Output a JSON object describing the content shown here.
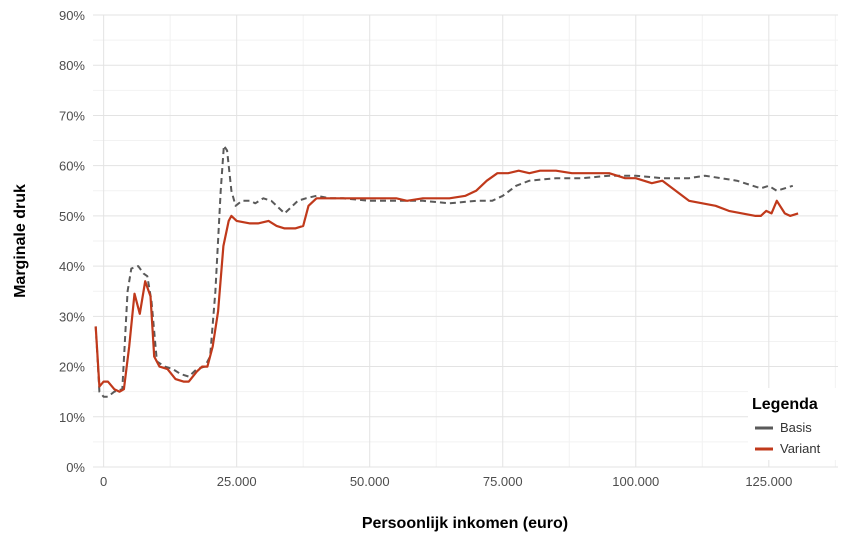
{
  "chart_data": {
    "type": "line",
    "xlabel": "Persoonlijk inkomen (euro)",
    "ylabel": "Marginale druk",
    "xlim": [
      -2000,
      138000
    ],
    "ylim": [
      0,
      90
    ],
    "x_ticks": [
      {
        "value": 0,
        "label": "0"
      },
      {
        "value": 25000,
        "label": "25.000"
      },
      {
        "value": 50000,
        "label": "50.000"
      },
      {
        "value": 75000,
        "label": "75.000"
      },
      {
        "value": 100000,
        "label": "100.000"
      },
      {
        "value": 125000,
        "label": "125.000"
      }
    ],
    "y_ticks": [
      {
        "value": 0,
        "label": "0%"
      },
      {
        "value": 10,
        "label": "10%"
      },
      {
        "value": 20,
        "label": "20%"
      },
      {
        "value": 30,
        "label": "30%"
      },
      {
        "value": 40,
        "label": "40%"
      },
      {
        "value": 50,
        "label": "50%"
      },
      {
        "value": 60,
        "label": "60%"
      },
      {
        "value": 70,
        "label": "70%"
      },
      {
        "value": 80,
        "label": "80%"
      },
      {
        "value": 90,
        "label": "90%"
      }
    ],
    "grid": true,
    "legend": {
      "title": "Legenda",
      "position": "bottom-right"
    },
    "series": [
      {
        "name": "Basis",
        "color": "#5a5a5a",
        "dash": "dashed",
        "points": [
          [
            -1500,
            28
          ],
          [
            -800,
            15
          ],
          [
            0,
            14
          ],
          [
            800,
            14
          ],
          [
            2000,
            15
          ],
          [
            3500,
            15.5
          ],
          [
            4500,
            35
          ],
          [
            5200,
            39.5
          ],
          [
            6500,
            40
          ],
          [
            7500,
            38.5
          ],
          [
            8200,
            38
          ],
          [
            9000,
            33
          ],
          [
            10000,
            21
          ],
          [
            11500,
            20
          ],
          [
            13000,
            19.5
          ],
          [
            14500,
            18.5
          ],
          [
            16000,
            18
          ],
          [
            17500,
            19.5
          ],
          [
            19000,
            20
          ],
          [
            20000,
            22
          ],
          [
            21000,
            35
          ],
          [
            22000,
            55
          ],
          [
            22600,
            64
          ],
          [
            23200,
            63
          ],
          [
            24000,
            55
          ],
          [
            24800,
            52
          ],
          [
            26000,
            53
          ],
          [
            27500,
            53
          ],
          [
            28500,
            52.5
          ],
          [
            30000,
            53.5
          ],
          [
            31500,
            53
          ],
          [
            33000,
            51.5
          ],
          [
            34000,
            50.5
          ],
          [
            35000,
            51.5
          ],
          [
            36500,
            53
          ],
          [
            38000,
            53.5
          ],
          [
            40000,
            54
          ],
          [
            42500,
            53.5
          ],
          [
            45000,
            53.5
          ],
          [
            50000,
            53
          ],
          [
            55000,
            53
          ],
          [
            60000,
            53
          ],
          [
            65000,
            52.5
          ],
          [
            70000,
            53
          ],
          [
            73000,
            53
          ],
          [
            75000,
            54
          ],
          [
            77500,
            56
          ],
          [
            80000,
            57
          ],
          [
            85000,
            57.5
          ],
          [
            90000,
            57.5
          ],
          [
            95000,
            58
          ],
          [
            100000,
            58
          ],
          [
            105000,
            57.5
          ],
          [
            110000,
            57.5
          ],
          [
            113000,
            58
          ],
          [
            116000,
            57.5
          ],
          [
            119000,
            57
          ],
          [
            122000,
            56
          ],
          [
            123500,
            55.5
          ],
          [
            125000,
            56
          ],
          [
            126500,
            55
          ],
          [
            128000,
            55.5
          ],
          [
            129500,
            56
          ]
        ]
      },
      {
        "name": "Variant",
        "color": "#c0391b",
        "dash": "solid",
        "points": [
          [
            -1500,
            28
          ],
          [
            -800,
            16
          ],
          [
            0,
            17
          ],
          [
            800,
            17
          ],
          [
            2000,
            15.5
          ],
          [
            3000,
            15
          ],
          [
            3800,
            15.5
          ],
          [
            4800,
            24
          ],
          [
            5800,
            34.5
          ],
          [
            6800,
            30.5
          ],
          [
            7800,
            37
          ],
          [
            8800,
            34
          ],
          [
            9500,
            22
          ],
          [
            10500,
            20
          ],
          [
            12000,
            19.5
          ],
          [
            13500,
            17.5
          ],
          [
            15000,
            17
          ],
          [
            16000,
            17
          ],
          [
            17500,
            19
          ],
          [
            18500,
            20
          ],
          [
            19500,
            20
          ],
          [
            20500,
            24
          ],
          [
            21500,
            31
          ],
          [
            22500,
            44
          ],
          [
            23500,
            49
          ],
          [
            24000,
            50
          ],
          [
            25000,
            49
          ],
          [
            27500,
            48.5
          ],
          [
            29000,
            48.5
          ],
          [
            31000,
            49
          ],
          [
            32500,
            48
          ],
          [
            34000,
            47.5
          ],
          [
            36000,
            47.5
          ],
          [
            37500,
            48
          ],
          [
            38500,
            52
          ],
          [
            40000,
            53.5
          ],
          [
            42500,
            53.5
          ],
          [
            45000,
            53.5
          ],
          [
            50000,
            53.5
          ],
          [
            55000,
            53.5
          ],
          [
            57000,
            53
          ],
          [
            60000,
            53.5
          ],
          [
            65000,
            53.5
          ],
          [
            68000,
            54
          ],
          [
            70000,
            55
          ],
          [
            72000,
            57
          ],
          [
            74000,
            58.5
          ],
          [
            76000,
            58.5
          ],
          [
            78000,
            59
          ],
          [
            80000,
            58.5
          ],
          [
            82000,
            59
          ],
          [
            85000,
            59
          ],
          [
            88000,
            58.5
          ],
          [
            92000,
            58.5
          ],
          [
            95000,
            58.5
          ],
          [
            98000,
            57.5
          ],
          [
            100000,
            57.5
          ],
          [
            103000,
            56.5
          ],
          [
            105000,
            57
          ],
          [
            107500,
            55
          ],
          [
            110000,
            53
          ],
          [
            112500,
            52.5
          ],
          [
            115000,
            52
          ],
          [
            117500,
            51
          ],
          [
            120000,
            50.5
          ],
          [
            122500,
            50
          ],
          [
            123500,
            50
          ],
          [
            124500,
            51
          ],
          [
            125500,
            50.5
          ],
          [
            126500,
            53
          ],
          [
            128000,
            50.5
          ],
          [
            129000,
            50
          ],
          [
            130500,
            50.5
          ]
        ]
      }
    ]
  }
}
